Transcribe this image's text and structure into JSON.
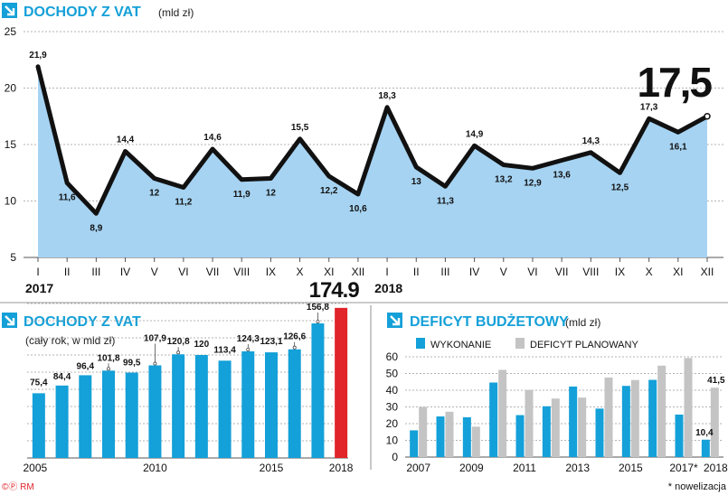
{
  "colors": {
    "accent": "#14a0d8",
    "area": "#a6d3f2",
    "line": "#111111",
    "bar_blue": "#14a0d8",
    "bar_gray": "#c4c4c4",
    "bar_red": "#e0242a"
  },
  "footer": {
    "left": "©Ⓟ RM",
    "right": "* nowelizacja"
  },
  "chart_data": [
    {
      "type": "area",
      "title": "DOCHODY Z VAT",
      "subtitle": "(mld zł)",
      "categories": [
        "I",
        "II",
        "III",
        "IV",
        "V",
        "VI",
        "VII",
        "VIII",
        "IX",
        "X",
        "XI",
        "XII",
        "I",
        "II",
        "III",
        "IV",
        "V",
        "VI",
        "VII",
        "VIII",
        "IX",
        "X",
        "XI",
        "XII"
      ],
      "year_labels": [
        {
          "label": "2017",
          "index": 0
        },
        {
          "label": "2018",
          "index": 12
        }
      ],
      "values": [
        21.9,
        11.6,
        8.9,
        14.4,
        12,
        11.2,
        14.6,
        11.9,
        12,
        15.5,
        12.2,
        10.6,
        18.3,
        13,
        11.3,
        14.9,
        13.2,
        12.9,
        13.6,
        14.3,
        12.5,
        17.3,
        16.1,
        17.5
      ],
      "value_labels": [
        "21,9",
        "11,6",
        "8,9",
        "14,4",
        "12",
        "11,2",
        "14,6",
        "11,9",
        "12",
        "15,5",
        "12,2",
        "10,6",
        "18,3",
        "13",
        "11,3",
        "14,9",
        "13,2",
        "12,9",
        "13,6",
        "14,3",
        "12,5",
        "17,3",
        "16,1",
        "17,5"
      ],
      "ylim": [
        5,
        25
      ],
      "yticks": [
        5,
        10,
        15,
        20,
        25
      ],
      "grid": true
    },
    {
      "type": "bar",
      "title": "DOCHODY Z VAT",
      "subtitle": "(cały rok, w mld zł)",
      "categories": [
        "2005",
        "2006",
        "2007",
        "2008",
        "2009",
        "2010",
        "2011",
        "2012",
        "2013",
        "2014",
        "2015",
        "2016",
        "2017",
        "2018"
      ],
      "values": [
        75.4,
        84.4,
        96.4,
        101.8,
        99.5,
        107.9,
        120.8,
        120,
        113.4,
        124.3,
        123.1,
        126.6,
        156.8,
        174.9
      ],
      "value_labels": [
        "75,4",
        "84,4",
        "96,4",
        "101,8",
        "99,5",
        "107,9",
        "120,8",
        "120",
        "113,4",
        "124,3",
        "123,1",
        "126,6",
        "156,8",
        "174.9"
      ],
      "xtick_labels": [
        "2005",
        "2010",
        "2015",
        "2018"
      ],
      "highlight_index": 13,
      "ylim": [
        0,
        200
      ],
      "grid": true
    },
    {
      "type": "bar",
      "title": "DEFICYT BUDŻETOWY",
      "subtitle": "(mld zł)",
      "categories": [
        "2007",
        "2008",
        "2009",
        "2010",
        "2011",
        "2012",
        "2013",
        "2014",
        "2015",
        "2016",
        "2017*",
        "2018"
      ],
      "xtick_labels": [
        "2007",
        "2009",
        "2011",
        "2013",
        "2015",
        "2017*",
        "2018"
      ],
      "series": [
        {
          "name": "WYKONANIE",
          "values": [
            16,
            24.3,
            23.8,
            44.6,
            25.1,
            30.4,
            42.2,
            29,
            42.6,
            46.2,
            25.4,
            10.4
          ]
        },
        {
          "name": "DEFICYT PLANOWANY",
          "values": [
            30,
            27.1,
            18.2,
            52.2,
            40.2,
            35,
            35.6,
            47.6,
            46.1,
            54.7,
            59.3,
            41.5
          ]
        }
      ],
      "value_labels": {
        "2018_wykonanie": "10,4",
        "2018_planowany": "41,5"
      },
      "ylim": [
        0,
        60
      ],
      "yticks": [
        0,
        10,
        20,
        30,
        40,
        50,
        60
      ],
      "grid": true,
      "legend": "top"
    }
  ]
}
